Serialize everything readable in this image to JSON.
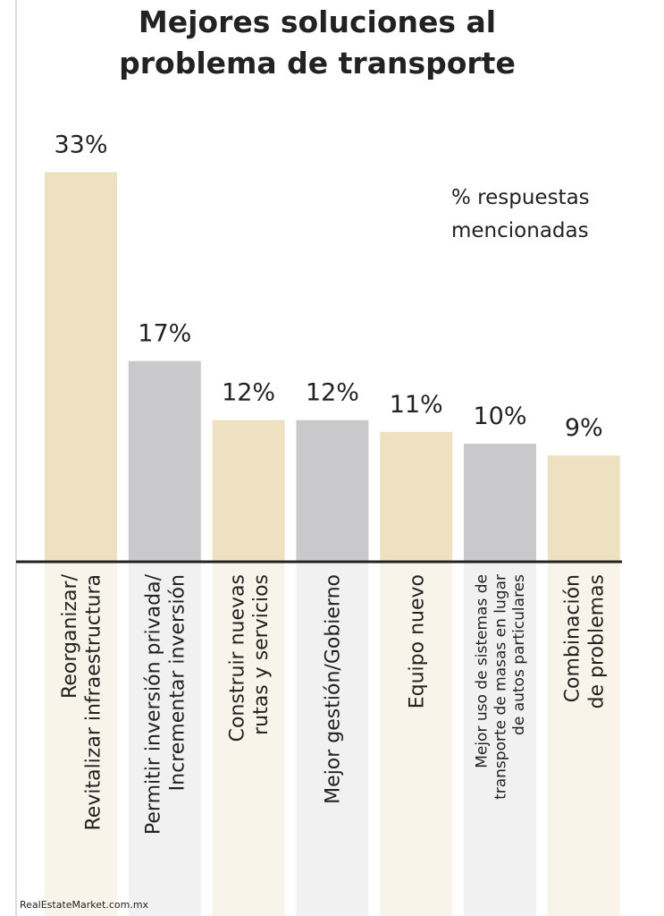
{
  "chart_data": {
    "type": "bar",
    "title": [
      "Mejores soluciones al",
      "problema de transporte"
    ],
    "annotation": [
      "% respuestas",
      "mencionadas"
    ],
    "source": "RealEstateMarket.com.mx",
    "categories": [
      "Reorganizar/\nRevitalizar infraestructura",
      "Permitir inversión privada/\nIncrementar inversión",
      "Construir nuevas\nrutas y servicios",
      "Mejor gestión/Gobierno",
      "Equipo nuevo",
      "Mejor uso de sistemas de\ntransporte de masas en lugar\nde autos particulares",
      "Combinación\nde problemas"
    ],
    "values": [
      33,
      17,
      12,
      12,
      11,
      10,
      9
    ],
    "value_labels": [
      "33%",
      "17%",
      "12%",
      "12%",
      "11%",
      "10%",
      "9%"
    ],
    "colors": [
      "#ede1c2",
      "#c9c9cb",
      "#ede1c2",
      "#c9c9cb",
      "#ede1c2",
      "#c9c9cb",
      "#ede1c2"
    ],
    "column_colors": [
      "#f8f4ea",
      "#f1f1f1",
      "#f8f4ea",
      "#f1f1f1",
      "#f8f4ea",
      "#f1f1f1",
      "#f8f4ea"
    ]
  }
}
